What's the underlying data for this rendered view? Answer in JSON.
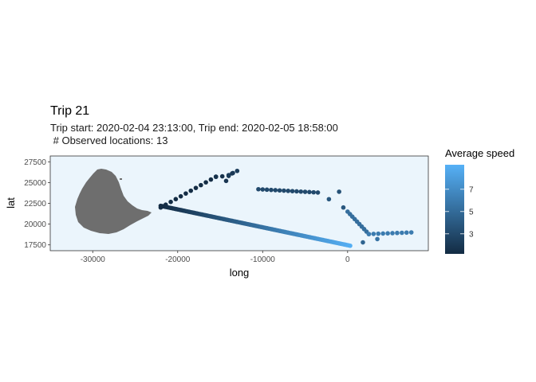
{
  "chart_data": {
    "type": "scatter",
    "title": "Trip 21",
    "subtitle_line1": "Trip start: 2020-02-04 23:13:00, Trip end: 2020-02-05 18:58:00",
    "subtitle_line2": " # Observed locations: 13",
    "xlabel": "long",
    "ylabel": "lat",
    "xlim": [
      -35000,
      9500
    ],
    "ylim": [
      16800,
      28200
    ],
    "x_ticks": [
      -30000,
      -20000,
      -10000,
      0
    ],
    "x_tick_labels": [
      "-30000",
      "-20000",
      "-10000",
      "0"
    ],
    "y_ticks": [
      17500,
      20000,
      22500,
      25000,
      27500
    ],
    "y_tick_labels": [
      "17500",
      "20000",
      "22500",
      "25000",
      "27500"
    ],
    "panel_background": "#ebf5fc",
    "land_color": "#6e6e6e",
    "legend": {
      "title": "Average speed",
      "position": "right",
      "ticks": [
        3,
        5,
        7
      ],
      "tick_labels": [
        "3",
        "5",
        "7"
      ],
      "range": [
        1.2,
        9.2
      ],
      "color_low": "#132b43",
      "color_high": "#56b1f7"
    },
    "segments": [
      {
        "from": [
          -22000,
          22000
        ],
        "to": [
          -15500,
          25700
        ],
        "speed": 1.3,
        "n": 12
      },
      {
        "from": [
          -15500,
          25700
        ],
        "to": [
          -14000,
          25800
        ],
        "speed": 1.6,
        "n": 3
      },
      {
        "from": [
          -14000,
          25900
        ],
        "to": [
          -13000,
          26400
        ],
        "speed": 2.2,
        "n": 3
      },
      {
        "from": [
          -10500,
          24200
        ],
        "to": [
          -3500,
          23800
        ],
        "speed": 3.0,
        "n": 15
      },
      {
        "from": [
          -2200,
          23000
        ],
        "to": [
          -500,
          22000
        ],
        "speed": 3.8,
        "n": 2
      },
      {
        "from": [
          0,
          21500
        ],
        "to": [
          2500,
          18800
        ],
        "speed": 5.2,
        "n": 10
      },
      {
        "from": [
          2500,
          18800
        ],
        "to": [
          7500,
          19000
        ],
        "speed": 6.0,
        "n": 10
      },
      {
        "from": [
          -22000,
          22200
        ],
        "to": [
          300,
          17400
        ],
        "speed": 1.2,
        "n": 120,
        "speed_end": 9.0
      }
    ],
    "extra_points": [
      {
        "x": -13600,
        "y": 26100,
        "speed": 2.0
      },
      {
        "x": -14300,
        "y": 25200,
        "speed": 1.8
      },
      {
        "x": 1800,
        "y": 17800,
        "speed": 4.6
      },
      {
        "x": 3500,
        "y": 18200,
        "speed": 5.5
      },
      {
        "x": -1000,
        "y": 23900,
        "speed": 3.5
      }
    ]
  }
}
